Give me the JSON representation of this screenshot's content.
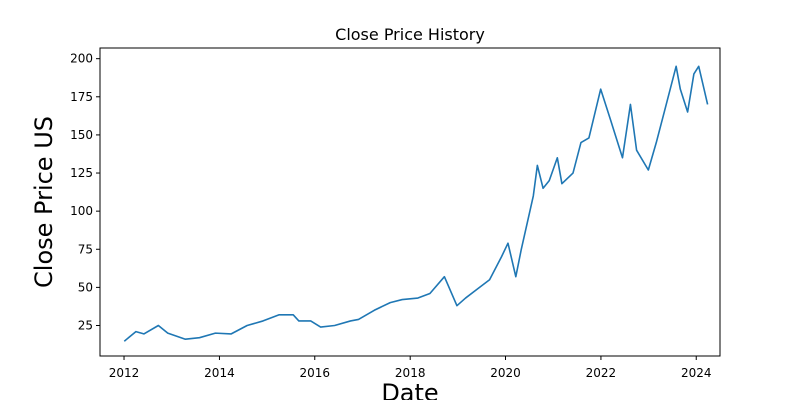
{
  "chart_data": {
    "type": "line",
    "title": "Close Price History",
    "xlabel": "Date",
    "ylabel": "Close Price US",
    "xlim": [
      "2011-07-01",
      "2024-07-01"
    ],
    "ylim": [
      5,
      207
    ],
    "x_ticks": [
      "2012",
      "2014",
      "2016",
      "2018",
      "2020",
      "2022",
      "2024"
    ],
    "y_ticks": [
      "25",
      "50",
      "75",
      "100",
      "125",
      "150",
      "175",
      "200"
    ],
    "y_tick_values": [
      25,
      50,
      75,
      100,
      125,
      150,
      175,
      200
    ],
    "grid": false,
    "line_color": "#1f77b4",
    "series": [
      {
        "x": [
          "2012-01-03",
          "2012-04-01",
          "2012-06-01",
          "2012-09-20",
          "2012-12-01",
          "2013-04-15",
          "2013-08-01",
          "2013-12-01",
          "2014-04-01",
          "2014-08-01",
          "2014-12-01",
          "2015-04-01",
          "2015-07-20",
          "2015-09-01",
          "2015-12-01",
          "2016-02-15",
          "2016-06-01",
          "2016-10-01",
          "2016-12-01",
          "2017-04-01",
          "2017-08-01",
          "2017-11-01",
          "2018-03-01",
          "2018-06-01",
          "2018-09-20",
          "2018-12-25",
          "2019-03-01",
          "2019-06-01",
          "2019-09-01",
          "2019-12-01",
          "2020-01-20",
          "2020-03-20",
          "2020-05-01",
          "2020-08-01",
          "2020-09-01",
          "2020-10-15",
          "2020-12-01",
          "2021-02-01",
          "2021-03-08",
          "2021-06-01",
          "2021-08-01",
          "2021-10-01",
          "2021-12-30",
          "2022-03-15",
          "2022-06-15",
          "2022-08-15",
          "2022-10-01",
          "2022-12-30",
          "2023-03-01",
          "2023-05-01",
          "2023-07-31",
          "2023-09-01",
          "2023-10-27",
          "2023-12-14",
          "2024-01-20",
          "2024-03-01",
          "2024-03-28"
        ],
        "y": [
          14.7,
          21,
          19.5,
          25,
          20,
          16,
          17,
          20,
          19.5,
          25,
          28,
          32,
          32,
          28,
          28,
          24,
          25,
          28,
          29,
          35,
          40,
          42,
          43,
          46,
          57,
          38,
          43,
          49,
          55,
          70,
          79,
          57,
          75,
          110,
          130,
          115,
          120,
          135,
          118,
          125,
          145,
          148,
          180,
          160,
          135,
          170,
          140,
          127,
          145,
          165,
          195,
          180,
          165,
          190,
          195,
          180,
          170
        ]
      }
    ]
  }
}
